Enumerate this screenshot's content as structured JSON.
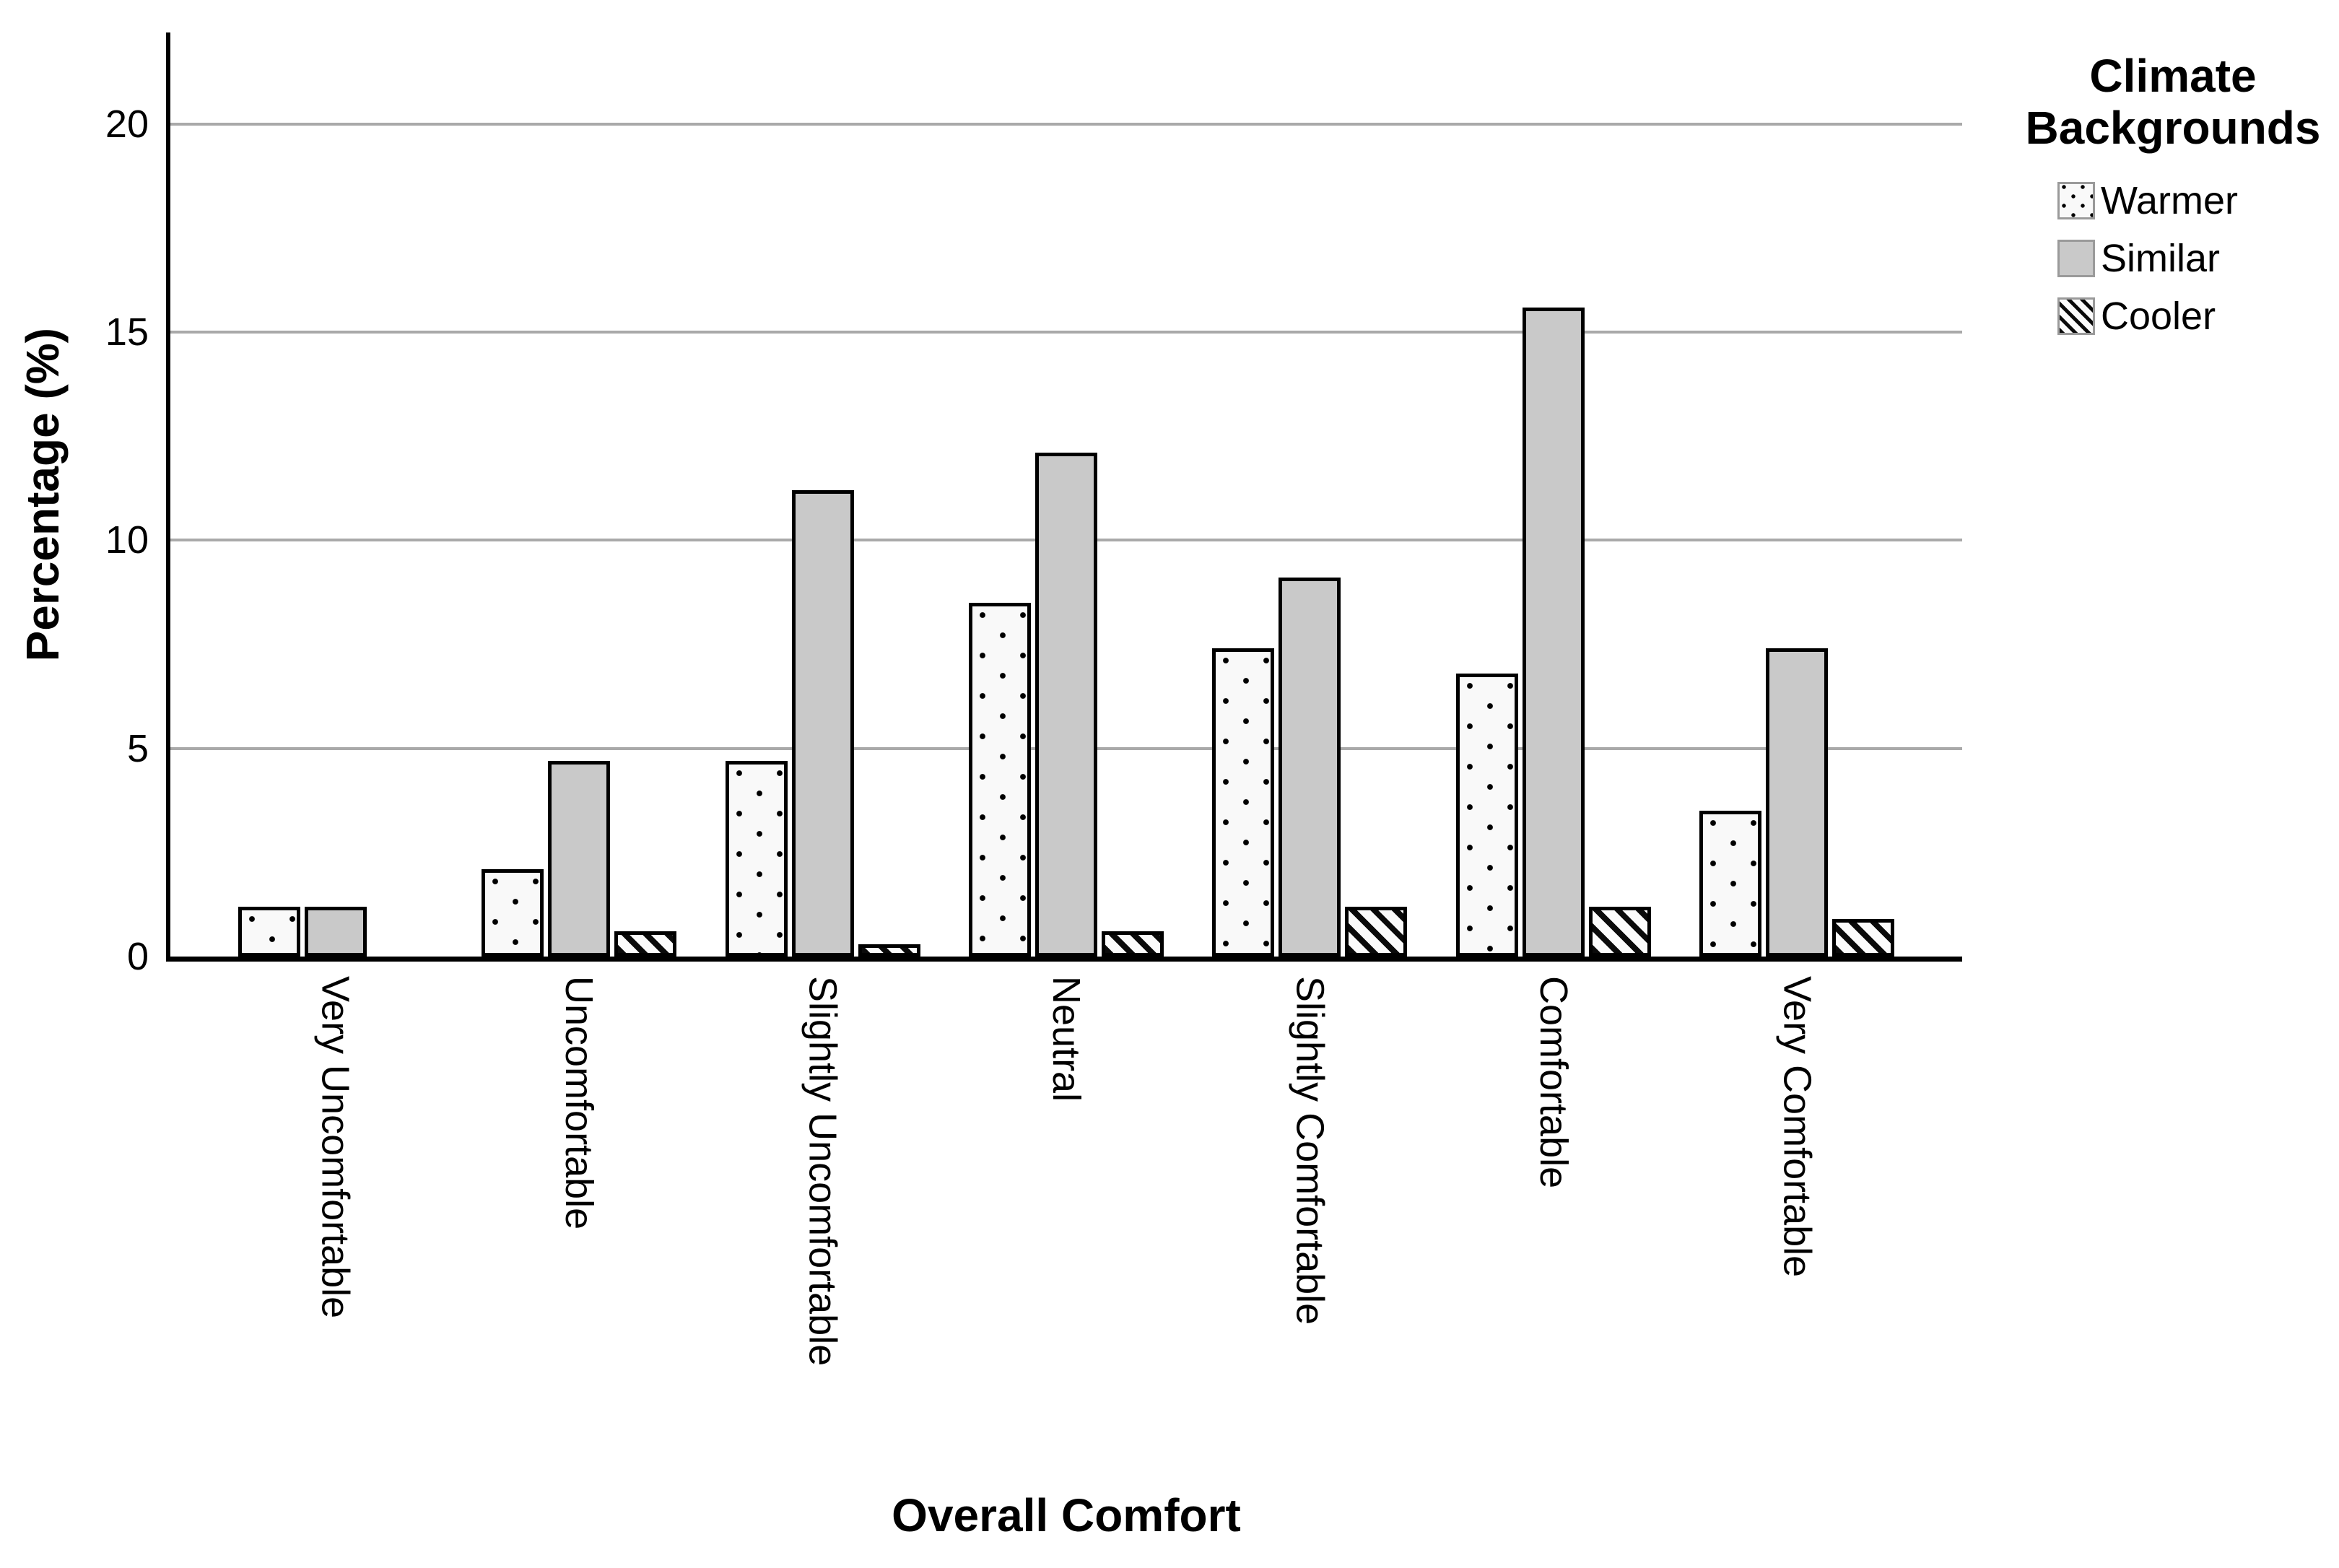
{
  "chart_data": {
    "type": "bar",
    "title": "",
    "xlabel": "Overall Comfort",
    "ylabel": "Percentage (%)",
    "legend_title": "Climate Backgrounds",
    "legend_position": "right",
    "grid": true,
    "ylim": [
      0,
      22.2
    ],
    "yticks": [
      0,
      5,
      10,
      15,
      20
    ],
    "categories": [
      "Very Uncomfortable",
      "Uncomfortable",
      "Slightly Uncomfortable",
      "Neutral",
      "Slightly Comfortable",
      "Comfortable",
      "Very Comfortable"
    ],
    "series": [
      {
        "name": "Warmer",
        "style": "dots",
        "values": [
          1.2,
          2.1,
          4.7,
          8.5,
          7.4,
          6.8,
          3.5
        ]
      },
      {
        "name": "Similar",
        "style": "solid",
        "values": [
          1.2,
          4.7,
          11.2,
          12.1,
          9.1,
          15.6,
          7.4
        ]
      },
      {
        "name": "Cooler",
        "style": "hatch",
        "values": [
          0,
          0.6,
          0.3,
          0.6,
          1.2,
          1.2,
          0.9
        ]
      }
    ]
  },
  "colors": {
    "background": "#ffffff",
    "similar_fill": "#c9c9c9",
    "pattern_background": "#f9f9f9",
    "pattern_ink": "#000000",
    "gridline": "#a9a9a9",
    "axis": "#000000",
    "text": "#000000",
    "legend_swatch_border": "#9a9a9a"
  }
}
